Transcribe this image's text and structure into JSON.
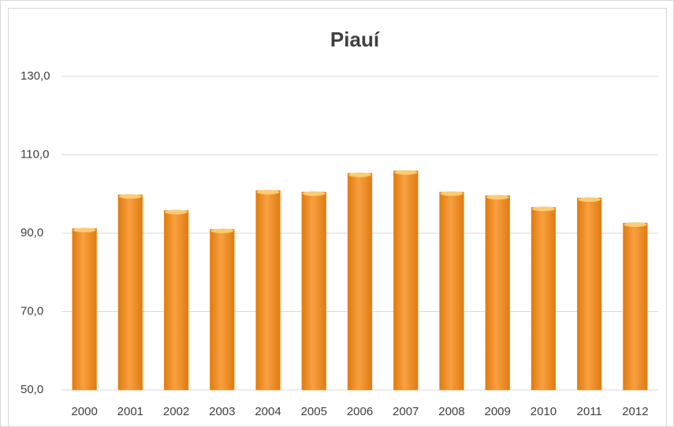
{
  "chart_data": {
    "type": "bar",
    "title": "Piauí",
    "categories": [
      "2000",
      "2001",
      "2002",
      "2003",
      "2004",
      "2005",
      "2006",
      "2007",
      "2008",
      "2009",
      "2010",
      "2011",
      "2012"
    ],
    "values": [
      91.2,
      99.8,
      95.8,
      91.0,
      100.9,
      100.5,
      105.3,
      105.9,
      100.5,
      99.6,
      96.6,
      99.0,
      92.6
    ],
    "color": "#f5921e",
    "ylim": [
      50,
      130
    ],
    "yticks": [
      {
        "value": 50,
        "label": "50,0"
      },
      {
        "value": 70,
        "label": "70,0"
      },
      {
        "value": 90,
        "label": "90,0"
      },
      {
        "value": 110,
        "label": "110,0"
      },
      {
        "value": 130,
        "label": "130,0"
      }
    ],
    "grid": true
  }
}
